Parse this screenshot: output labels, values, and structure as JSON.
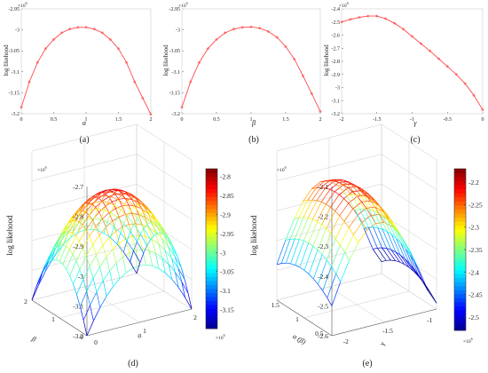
{
  "colors": {
    "line": "#ff4b4b",
    "axis": "#555555",
    "frame": "#cccccc"
  },
  "colormap": [
    "#00008f",
    "#0000ff",
    "#0080ff",
    "#00ffff",
    "#80ff80",
    "#ffff00",
    "#ff8000",
    "#ff0000",
    "#800000"
  ],
  "chart_data": [
    {
      "type": "line",
      "caption": "(a)",
      "xlabel": "α",
      "ylabel": "log likehood",
      "exponent_base": "×10",
      "exponent_power": "6",
      "xlim": [
        0,
        2
      ],
      "ylim": [
        -3.2,
        -2.95
      ],
      "xticks": [
        "0",
        "0.5",
        "1",
        "1.5",
        "2"
      ],
      "yticks": [
        "-2.95",
        "-3",
        "-3.05",
        "-3.1",
        "-3.15",
        "-3.2"
      ],
      "yticks_vals": [
        -2.95,
        -3.0,
        -3.05,
        -3.1,
        -3.15,
        -3.2
      ],
      "x": [
        0,
        0.125,
        0.25,
        0.375,
        0.5,
        0.625,
        0.75,
        0.875,
        1.0,
        1.125,
        1.25,
        1.375,
        1.5,
        1.625,
        1.75,
        1.875,
        2.0
      ],
      "y": [
        -3.185,
        -3.124,
        -3.078,
        -3.045,
        -3.023,
        -3.007,
        -2.998,
        -2.994,
        -2.994,
        -2.998,
        -3.007,
        -3.023,
        -3.045,
        -3.078,
        -3.124,
        -3.163,
        -3.202
      ]
    },
    {
      "type": "line",
      "caption": "(b)",
      "xlabel": "β",
      "ylabel": "log likehood",
      "exponent_base": "×10",
      "exponent_power": "6",
      "xlim": [
        0,
        2
      ],
      "ylim": [
        -3.2,
        -2.95
      ],
      "xticks": [
        "0",
        "0.5",
        "1",
        "1.5",
        "2"
      ],
      "yticks": [
        "-2.95",
        "-3",
        "-3.05",
        "-3.1",
        "-3.15",
        "-3.2"
      ],
      "yticks_vals": [
        -2.95,
        -3.0,
        -3.05,
        -3.1,
        -3.15,
        -3.2
      ],
      "x": [
        0,
        0.125,
        0.25,
        0.375,
        0.5,
        0.625,
        0.75,
        0.875,
        1.0,
        1.125,
        1.25,
        1.375,
        1.5,
        1.625,
        1.75,
        1.875,
        2.0
      ],
      "y": [
        -3.185,
        -3.124,
        -3.078,
        -3.045,
        -3.023,
        -3.007,
        -2.998,
        -2.994,
        -2.993,
        -2.996,
        -3.004,
        -3.018,
        -3.04,
        -3.07,
        -3.11,
        -3.152,
        -3.195
      ]
    },
    {
      "type": "line",
      "caption": "(c)",
      "xlabel": "γ",
      "ylabel": "log likehood",
      "exponent_base": "×10",
      "exponent_power": "6",
      "xlim": [
        -2,
        0
      ],
      "ylim": [
        -3.2,
        -2.4
      ],
      "xticks": [
        "-2",
        "-1.5",
        "-1",
        "-0.5",
        "0"
      ],
      "yticks": [
        "-2.4",
        "-2.5",
        "-2.6",
        "-2.7",
        "-2.8",
        "-2.9",
        "-3",
        "-3.1",
        "-3.2"
      ],
      "yticks_vals": [
        -2.4,
        -2.5,
        -2.6,
        -2.7,
        -2.8,
        -2.9,
        -3.0,
        -3.1,
        -3.2
      ],
      "x": [
        -2.0,
        -1.875,
        -1.75,
        -1.625,
        -1.5,
        -1.375,
        -1.25,
        -1.125,
        -1.0,
        -0.875,
        -0.75,
        -0.625,
        -0.5,
        -0.375,
        -0.25,
        -0.125,
        0.0
      ],
      "y": [
        -2.5,
        -2.48,
        -2.465,
        -2.455,
        -2.455,
        -2.475,
        -2.51,
        -2.555,
        -2.61,
        -2.665,
        -2.72,
        -2.78,
        -2.84,
        -2.9,
        -2.97,
        -3.06,
        -3.17
      ]
    },
    {
      "type": "surface",
      "caption": "(d)",
      "xlabel": "α",
      "ylabel": "β",
      "zlabel": "log likehood",
      "xlim": [
        0,
        2
      ],
      "ylim": [
        0,
        2
      ],
      "zlim": [
        -3.2,
        -2.7
      ],
      "xticks": [
        "0",
        "1",
        "2"
      ],
      "yticks": [
        "0",
        "1",
        "2"
      ],
      "zticks": [
        "-2.7",
        "-2.8",
        "-2.9",
        "-3",
        "-3.1",
        "-3.2"
      ],
      "zticks_vals": [
        -2.7,
        -2.8,
        -2.9,
        -3.0,
        -3.1,
        -3.2
      ],
      "z_peak": -2.82,
      "z_edge": -3.2,
      "grid": 16,
      "colorbar": {
        "ticks": [
          "-2.8",
          "-2.85",
          "-2.9",
          "-2.95",
          "-3",
          "-3.05",
          "-3.1",
          "-3.15"
        ],
        "ticks_vals": [
          -2.8,
          -2.85,
          -2.9,
          -2.95,
          -3.0,
          -3.05,
          -3.1,
          -3.15
        ],
        "range": [
          -3.2,
          -2.78
        ],
        "exponent_base": "×10",
        "exponent_power": "6"
      },
      "z_exponent_base": "×10",
      "z_exponent_power": "6"
    },
    {
      "type": "surface",
      "caption": "(e)",
      "xlabel": "γ",
      "ylabel": "α (β)",
      "zlabel": "log likehood",
      "xlim": [
        -2,
        -0.8
      ],
      "ylim": [
        0.5,
        1.5
      ],
      "zlim": [
        -2.6,
        -2.1
      ],
      "xticks": [
        "-2",
        "-1.5",
        "-1"
      ],
      "yticks": [
        "0.5",
        "1",
        "1.5"
      ],
      "zticks": [
        "-2.1",
        "-2.2",
        "-2.3",
        "-2.4",
        "-2.5",
        "-2.6"
      ],
      "zticks_vals": [
        -2.1,
        -2.2,
        -2.3,
        -2.4,
        -2.5,
        -2.6
      ],
      "grid": 12,
      "colorbar": {
        "ticks": [
          "-2.2",
          "-2.25",
          "-2.3",
          "-2.35",
          "-2.4",
          "-2.45",
          "-2.5"
        ],
        "ticks_vals": [
          -2.2,
          -2.25,
          -2.3,
          -2.35,
          -2.4,
          -2.45,
          -2.5
        ],
        "range": [
          -2.53,
          -2.17
        ],
        "exponent_base": "×10",
        "exponent_power": "6"
      },
      "z_exponent_base": "×10",
      "z_exponent_power": "6"
    }
  ]
}
